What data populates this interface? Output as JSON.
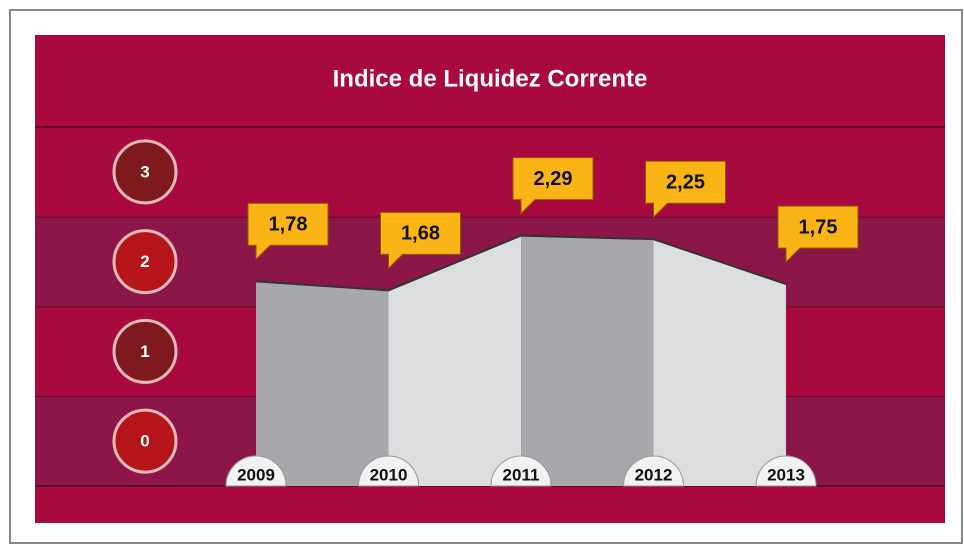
{
  "chart_data": {
    "type": "area",
    "title": "Indice de Liquidez Corrente",
    "categories": [
      "2009",
      "2010",
      "2011",
      "2012",
      "2013"
    ],
    "values": [
      1.78,
      1.68,
      2.29,
      2.25,
      1.75
    ],
    "value_labels": [
      "1,78",
      "1,68",
      "2,29",
      "2,25",
      "1,75"
    ],
    "ylim": [
      -0.5,
      3.5
    ],
    "yticks": [
      0,
      1,
      2,
      3
    ]
  }
}
